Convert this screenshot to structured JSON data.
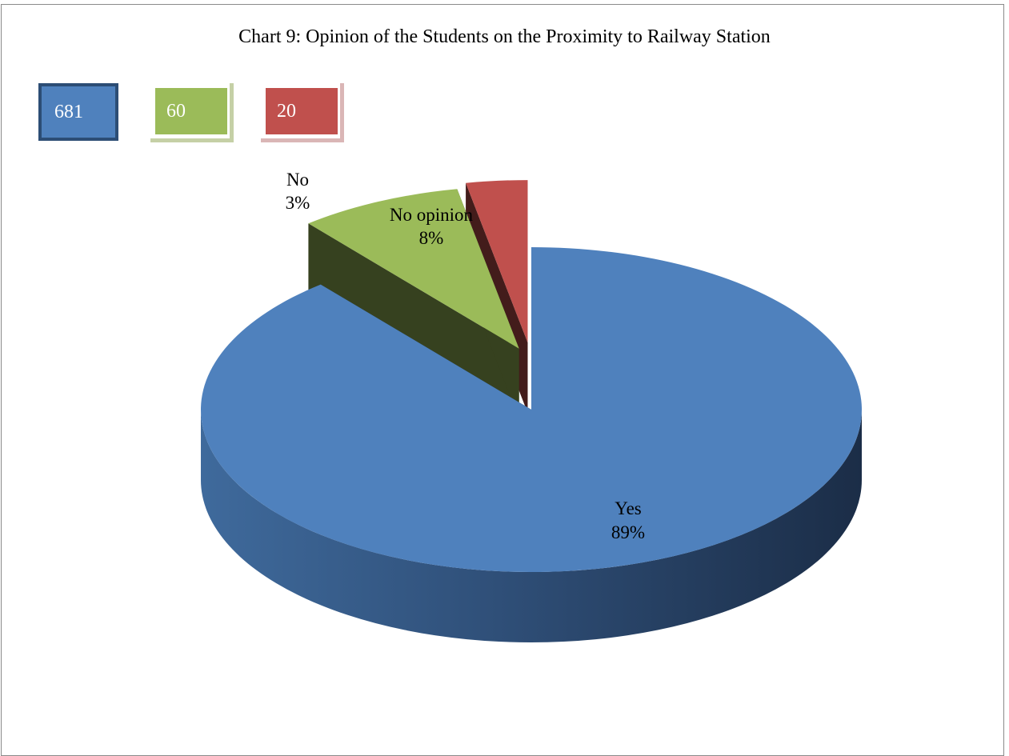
{
  "title": "Chart 9: Opinion of the Students on the Proximity to Railway Station",
  "count_boxes": [
    {
      "value": "681",
      "color": "#4f81bd"
    },
    {
      "value": "60",
      "color": "#9bbb59"
    },
    {
      "value": "20",
      "color": "#c0504d"
    }
  ],
  "chart_data": {
    "type": "pie",
    "style": "3d-exploded",
    "title": "Chart 9: Opinion of the Students on the Proximity to Railway Station",
    "slices": [
      {
        "label": "Yes",
        "percent_label": "89%",
        "value": 89,
        "count": 681,
        "color": "#4f81bd"
      },
      {
        "label": "No opinion",
        "percent_label": "8%",
        "value": 8,
        "count": 60,
        "color": "#9bbb59"
      },
      {
        "label": "No",
        "percent_label": "3%",
        "value": 3,
        "count": 20,
        "color": "#c0504d"
      }
    ]
  }
}
